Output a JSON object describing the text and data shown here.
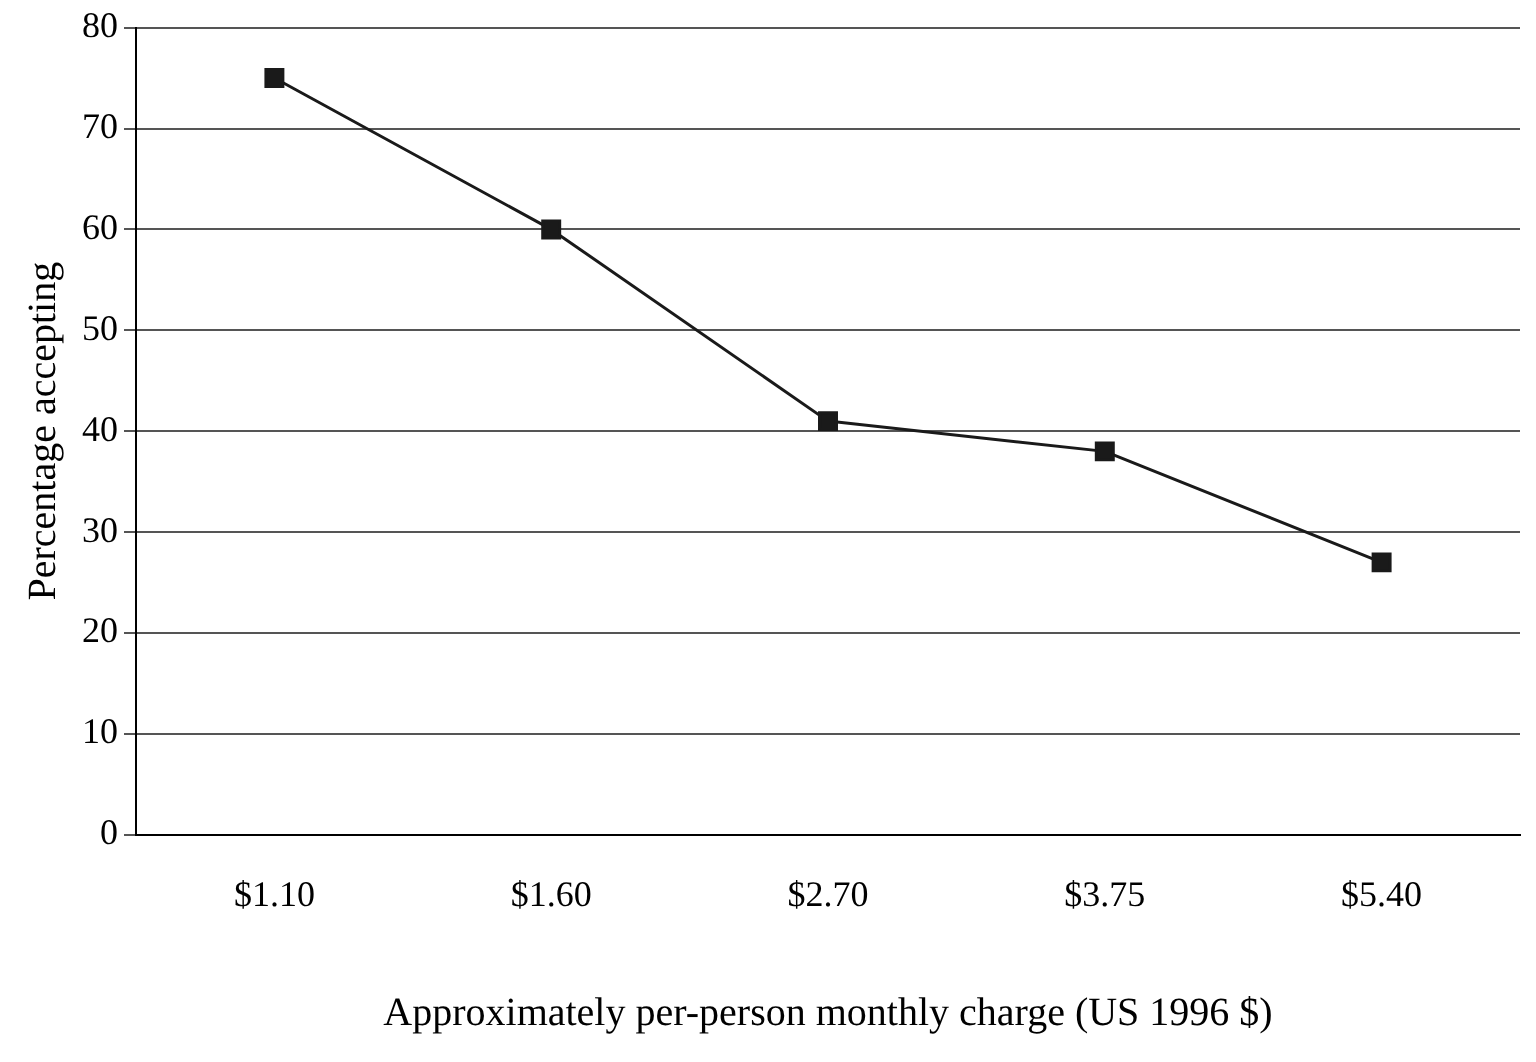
{
  "chart_data": {
    "type": "line",
    "xlabel": "Approximately per-person monthly charge (US 1996 $)",
    "ylabel": "Percentage accepting",
    "categories": [
      "$1.10",
      "$1.60",
      "$2.70",
      "$3.75",
      "$5.40"
    ],
    "series": [
      {
        "color": "#1a1a1a",
        "values": [
          75,
          60,
          41,
          38,
          27
        ]
      }
    ],
    "ylim": [
      0,
      80
    ],
    "yticks": [
      0,
      10,
      20,
      30,
      40,
      50,
      60,
      70,
      80
    ],
    "grid": "y",
    "legend": false,
    "marker": "square",
    "line_style": "solid"
  }
}
